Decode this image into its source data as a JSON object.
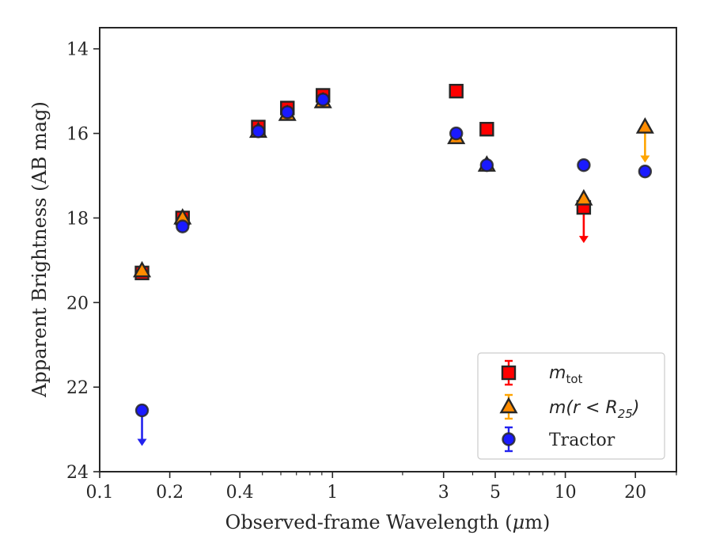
{
  "chart_data": {
    "type": "scatter",
    "xlabel_pre": "Observed-frame Wavelength (",
    "xlabel_mu": "μ",
    "xlabel_post": "m)",
    "ylabel": "Apparent Brightness (AB mag)",
    "xscale": "log",
    "xlim": [
      0.1,
      30
    ],
    "ylim": [
      24,
      13.5
    ],
    "y_inverted": true,
    "xticks": [
      {
        "value": 0.1,
        "label": "0.1"
      },
      {
        "value": 0.2,
        "label": "0.2"
      },
      {
        "value": 0.4,
        "label": "0.4"
      },
      {
        "value": 1,
        "label": "1"
      },
      {
        "value": 3,
        "label": "3"
      },
      {
        "value": 5,
        "label": "5"
      },
      {
        "value": 10,
        "label": "10"
      },
      {
        "value": 20,
        "label": "20"
      }
    ],
    "yticks": [
      {
        "value": 14,
        "label": "14"
      },
      {
        "value": 16,
        "label": "16"
      },
      {
        "value": 18,
        "label": "18"
      },
      {
        "value": 20,
        "label": "20"
      },
      {
        "value": 22,
        "label": "22"
      },
      {
        "value": 24,
        "label": "24"
      }
    ],
    "grid": false,
    "legend_position": "lower-right",
    "series": [
      {
        "name": "m_tot",
        "marker": "square",
        "color": "#ff0000",
        "edgecolor": "#262626",
        "errcolor": "#ff0000",
        "points": [
          {
            "x": 0.152,
            "y": 19.3
          },
          {
            "x": 0.227,
            "y": 18.0
          },
          {
            "x": 0.48,
            "y": 15.85
          },
          {
            "x": 0.64,
            "y": 15.4
          },
          {
            "x": 0.91,
            "y": 15.1
          },
          {
            "x": 3.4,
            "y": 15.0
          },
          {
            "x": 4.6,
            "y": 15.9
          },
          {
            "x": 12.0,
            "y": 17.75,
            "upper_limit": true
          }
        ]
      },
      {
        "name": "m(r<R25)",
        "marker": "triangle",
        "color": "#ff8c00",
        "edgecolor": "#262626",
        "errcolor": "#ffa500",
        "points": [
          {
            "x": 0.152,
            "y": 19.25
          },
          {
            "x": 0.227,
            "y": 18.0
          },
          {
            "x": 0.48,
            "y": 15.95
          },
          {
            "x": 0.64,
            "y": 15.55
          },
          {
            "x": 0.91,
            "y": 15.25
          },
          {
            "x": 3.4,
            "y": 16.1
          },
          {
            "x": 4.6,
            "y": 16.75
          },
          {
            "x": 12.0,
            "y": 17.55
          },
          {
            "x": 22.0,
            "y": 15.85,
            "upper_limit": true
          }
        ]
      },
      {
        "name": "Tractor",
        "marker": "circle",
        "color": "#1a1aff",
        "edgecolor": "#262626",
        "errcolor": "#2222ee",
        "points": [
          {
            "x": 0.152,
            "y": 22.55,
            "upper_limit": true
          },
          {
            "x": 0.227,
            "y": 18.2
          },
          {
            "x": 0.48,
            "y": 15.95
          },
          {
            "x": 0.64,
            "y": 15.5
          },
          {
            "x": 0.91,
            "y": 15.2
          },
          {
            "x": 3.4,
            "y": 16.0
          },
          {
            "x": 4.6,
            "y": 16.75
          },
          {
            "x": 12.0,
            "y": 16.75
          },
          {
            "x": 22.0,
            "y": 16.9
          }
        ]
      }
    ],
    "legend": [
      {
        "series": "m_tot",
        "base": "m",
        "sub": "tot"
      },
      {
        "series": "m(r<R25)",
        "base": "m(r < R",
        "sub": "25",
        "tail": ")"
      },
      {
        "series": "Tractor",
        "text": "Tractor"
      }
    ]
  }
}
